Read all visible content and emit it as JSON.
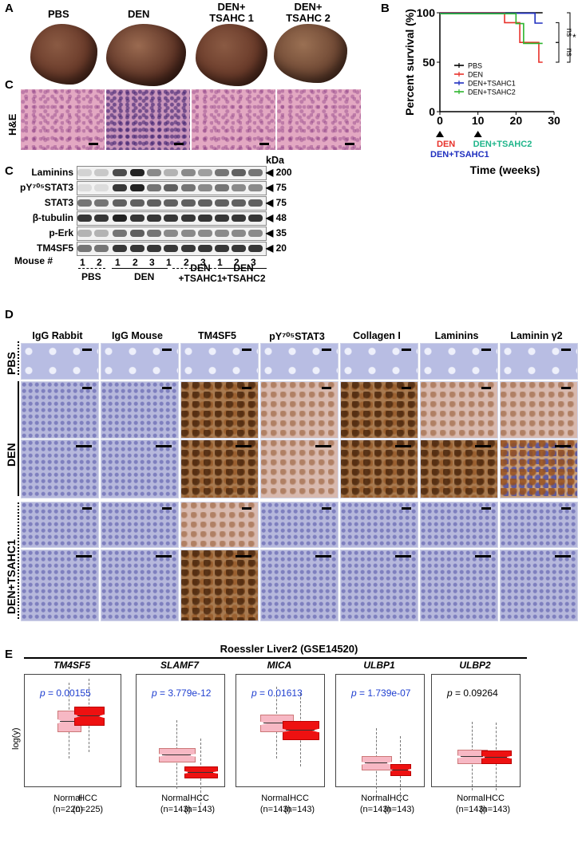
{
  "panels": {
    "A": "A",
    "B": "B",
    "C1": "C",
    "C2": "C",
    "D": "D",
    "E": "E"
  },
  "panelA": {
    "groups": [
      "PBS",
      "DEN",
      "DEN+\nTSAHC 1",
      "DEN+\nTSAHC 2"
    ]
  },
  "panelC_he": {
    "row_label": "H&E"
  },
  "chart_data": {
    "type": "line",
    "title": "",
    "xlabel": "Time (weeks)",
    "ylabel": "Percent survival (%)",
    "xlim": [
      0,
      30
    ],
    "ylim": [
      0,
      100
    ],
    "xticks": [
      "0",
      "10",
      "20",
      "30"
    ],
    "yticks": [
      "0",
      "50",
      "100"
    ],
    "legend_position": "inside-right",
    "series": [
      {
        "name": "PBS",
        "color": "#000000",
        "x": [
          0,
          27
        ],
        "y": [
          100,
          100
        ]
      },
      {
        "name": "DEN",
        "color": "#e8312a",
        "x": [
          0,
          17,
          17,
          21,
          21,
          26,
          26,
          27
        ],
        "y": [
          100,
          100,
          90,
          90,
          70,
          70,
          50,
          50
        ]
      },
      {
        "name": "DEN+TSAHC1",
        "color": "#1f2fbf",
        "x": [
          0,
          25,
          25,
          27
        ],
        "y": [
          100,
          100,
          90,
          90
        ]
      },
      {
        "name": "DEN+TSAHC2",
        "color": "#2db52d",
        "x": [
          0,
          20,
          20,
          22,
          22,
          27
        ],
        "y": [
          100,
          100,
          90,
          90,
          70,
          70
        ]
      }
    ],
    "annotations": {
      "sig1": "ns",
      "sig2": "ns",
      "sig3": "*",
      "arrow_labels": [
        {
          "text": "DEN",
          "color": "#e8312a"
        },
        {
          "text": "DEN+TSAHC2",
          "color": "#1fb58a"
        },
        {
          "text": "DEN+TSAHC1",
          "color": "#1f2fbf"
        }
      ]
    }
  },
  "blot": {
    "kda_header": "kDa",
    "rows": [
      {
        "label": "Laminins",
        "kda": "200"
      },
      {
        "label": "pY705STAT3",
        "kda": "75"
      },
      {
        "label": "STAT3",
        "kda": "75"
      },
      {
        "label": "β-tubulin",
        "kda": "48"
      },
      {
        "label": "p-Erk",
        "kda": "35"
      },
      {
        "label": "TM4SF5",
        "kda": "20"
      }
    ],
    "mouse_label": "Mouse #",
    "mouse_numbers": [
      "1",
      "2",
      "1",
      "2",
      "3",
      "1",
      "2",
      "3",
      "1",
      "2",
      "3"
    ],
    "groups": [
      "PBS",
      "DEN",
      "DEN\n+TSAHC1",
      "DEN\n+TSAHC2"
    ]
  },
  "ihc": {
    "columns": [
      "IgG Rabbit",
      "IgG Mouse",
      "TM4SF5",
      "pY705STAT3",
      "Collagen I",
      "Laminins",
      "Laminin γ2"
    ],
    "row_labels": [
      "PBS",
      "DEN",
      "DEN+TSAHC1"
    ]
  },
  "panelE": {
    "title": "Roessler Liver2 (GSE14520)",
    "ylabel": "log(y)",
    "genes": [
      {
        "name": "TM4SF5",
        "p": "p = 0.00155",
        "p_color": "#1f3fd0",
        "n": [
          "(n=220)",
          "(n=225)"
        ]
      },
      {
        "name": "SLAMF7",
        "p": "p  = 3.779e-12",
        "p_color": "#1f3fd0",
        "n": [
          "(n=143)",
          "(n=143)"
        ]
      },
      {
        "name": "MICA",
        "p": "p = 0.01613",
        "p_color": "#1f3fd0",
        "n": [
          "(n=143)",
          "(n=143)"
        ]
      },
      {
        "name": "ULBP1",
        "p": "p = 1.739e-07",
        "p_color": "#1f3fd0",
        "n": [
          "(n=143)",
          "(n=143)"
        ]
      },
      {
        "name": "ULBP2",
        "p": "p = 0.09264",
        "p_color": "#000000",
        "n": [
          "(n=143)",
          "(n=143)"
        ]
      }
    ],
    "xlabels": [
      "Normal",
      "HCC"
    ],
    "colors": {
      "normal": "#f7b8c4",
      "hcc": "#ee1111"
    }
  }
}
